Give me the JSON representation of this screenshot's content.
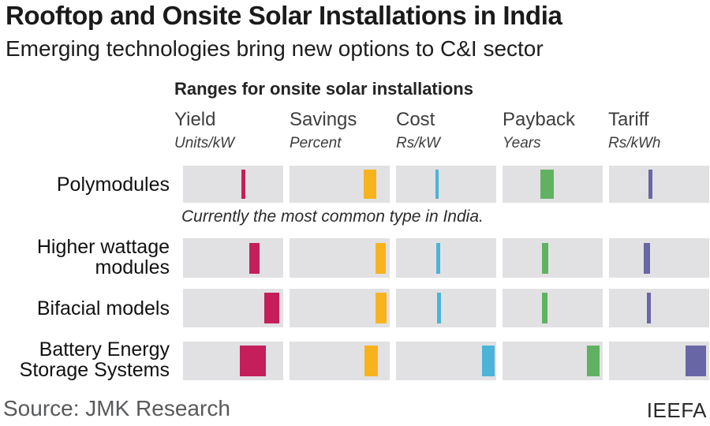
{
  "title": "Rooftop and Onsite Solar Installations in India",
  "subtitle": "Emerging technologies bring new options to C&I sector",
  "footer": {
    "source": "Source: JMK Research",
    "org": "IEEFA"
  },
  "chart_data": {
    "type": "table",
    "title": "Ranges for onsite solar installations",
    "grid": false,
    "legend_position": "none",
    "band_color": "#e1e1e3",
    "columns": [
      {
        "label": "Yield",
        "unit": "Units/kW",
        "color": "#c41f5b"
      },
      {
        "label": "Savings",
        "unit": "Percent",
        "color": "#f7b31e"
      },
      {
        "label": "Cost",
        "unit": "Rs/kW",
        "color": "#4bb4d8"
      },
      {
        "label": "Payback",
        "unit": "Years",
        "color": "#60b261"
      },
      {
        "label": "Tariff",
        "unit": "Rs/kWh",
        "color": "#6966a6"
      }
    ],
    "rows": [
      {
        "label": "Polymodules",
        "note": "Currently the most common type in India.",
        "ranges": [
          {
            "left_pct": 58,
            "width_pct": 4.5
          },
          {
            "left_pct": 74,
            "width_pct": 13
          },
          {
            "left_pct": 39,
            "width_pct": 3.5
          },
          {
            "left_pct": 38,
            "width_pct": 13
          },
          {
            "left_pct": 39,
            "width_pct": 4
          }
        ]
      },
      {
        "label": "Higher wattage\nmodules",
        "note": "",
        "ranges": [
          {
            "left_pct": 66,
            "width_pct": 10
          },
          {
            "left_pct": 86,
            "width_pct": 10
          },
          {
            "left_pct": 40,
            "width_pct": 4
          },
          {
            "left_pct": 39,
            "width_pct": 7
          },
          {
            "left_pct": 35,
            "width_pct": 6
          }
        ]
      },
      {
        "label": "Bifacial models",
        "note": "",
        "ranges": [
          {
            "left_pct": 81,
            "width_pct": 15
          },
          {
            "left_pct": 86,
            "width_pct": 11
          },
          {
            "left_pct": 41,
            "width_pct": 4
          },
          {
            "left_pct": 39,
            "width_pct": 6
          },
          {
            "left_pct": 38,
            "width_pct": 4
          }
        ]
      },
      {
        "label": "Battery Energy\nStorage Systems",
        "note": "",
        "ranges": [
          {
            "left_pct": 57,
            "width_pct": 26
          },
          {
            "left_pct": 75,
            "width_pct": 13
          },
          {
            "left_pct": 86,
            "width_pct": 12.5
          },
          {
            "left_pct": 84,
            "width_pct": 13
          },
          {
            "left_pct": 76,
            "width_pct": 21
          }
        ]
      }
    ]
  }
}
